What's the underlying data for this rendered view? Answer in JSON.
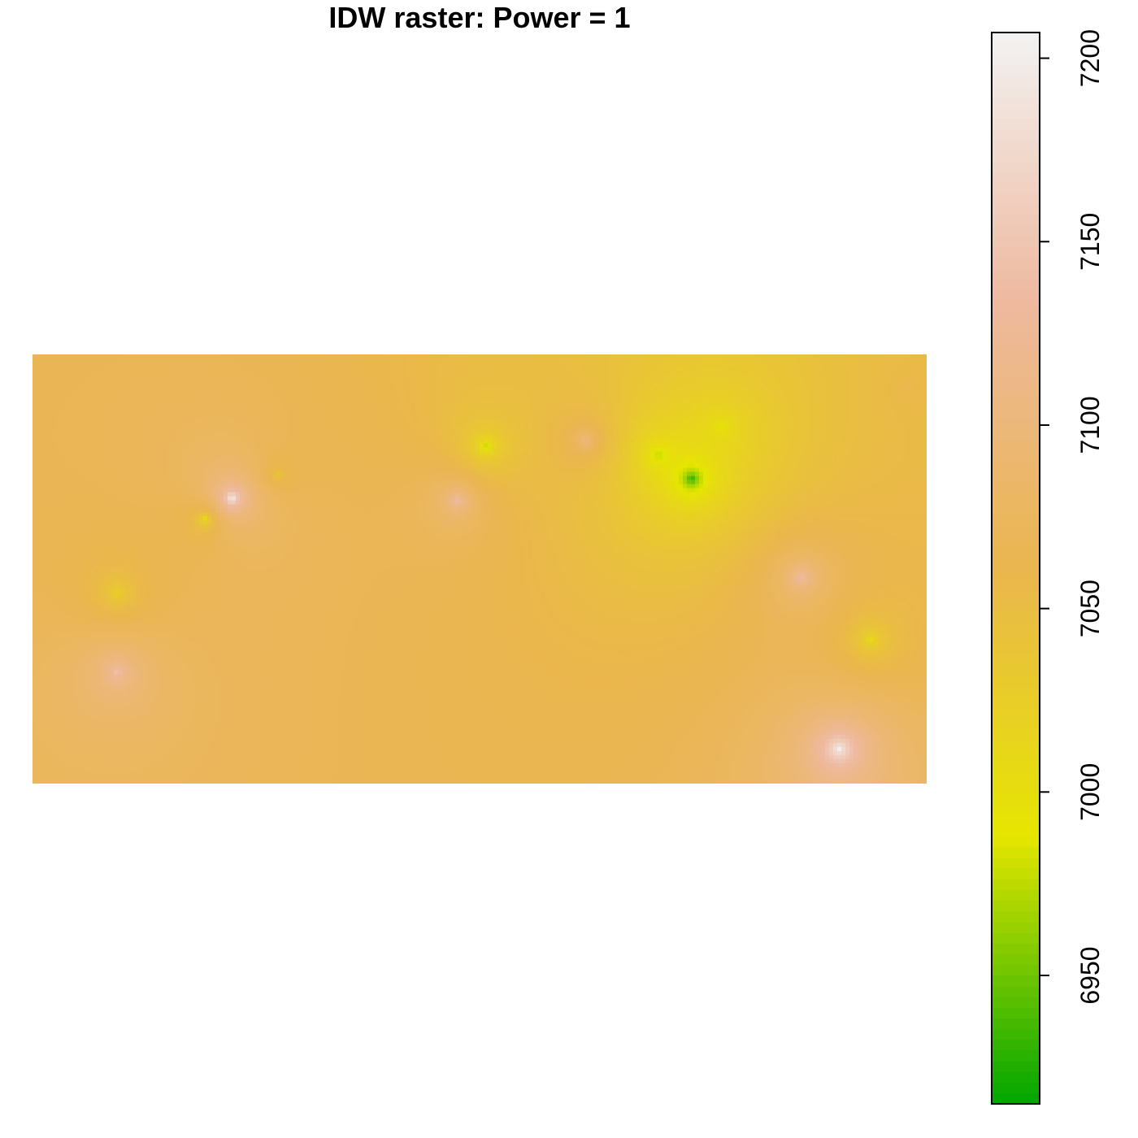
{
  "chart_data": {
    "type": "heatmap",
    "title": "IDW raster: Power = 1",
    "xlabel": "",
    "ylabel": "",
    "colorbar": {
      "min": 6915,
      "max": 7207,
      "ticks": [
        6950,
        7000,
        7050,
        7100,
        7150,
        7200
      ],
      "tick_labels": [
        "6950",
        "7000",
        "7050",
        "7100",
        "7150",
        "7200"
      ],
      "palette": "terrain",
      "colors": [
        "#00A600",
        "#E6E600",
        "#EAB64E",
        "#EEB99F",
        "#F2F2F2"
      ]
    },
    "idw_power": 1,
    "background_value": 7078,
    "sample_points": [
      {
        "x": 0.223,
        "y": 0.335,
        "value": 7207
      },
      {
        "x": 0.902,
        "y": 0.92,
        "value": 7200
      },
      {
        "x": 0.095,
        "y": 0.74,
        "value": 7140
      },
      {
        "x": 0.475,
        "y": 0.34,
        "value": 7140
      },
      {
        "x": 0.86,
        "y": 0.52,
        "value": 7140
      },
      {
        "x": 0.618,
        "y": 0.2,
        "value": 7110
      },
      {
        "x": 0.274,
        "y": 0.28,
        "value": 7040
      },
      {
        "x": 0.193,
        "y": 0.385,
        "value": 7010
      },
      {
        "x": 0.095,
        "y": 0.555,
        "value": 7020
      },
      {
        "x": 0.507,
        "y": 0.215,
        "value": 6980
      },
      {
        "x": 0.937,
        "y": 0.665,
        "value": 7010
      },
      {
        "x": 0.7,
        "y": 0.235,
        "value": 6970
      },
      {
        "x": 0.737,
        "y": 0.29,
        "value": 6920
      },
      {
        "x": 0.77,
        "y": 0.17,
        "value": 6990
      },
      {
        "x": 0.53,
        "y": 0.06,
        "value": 7050
      },
      {
        "x": 0.98,
        "y": 0.08,
        "value": 7060
      }
    ]
  }
}
